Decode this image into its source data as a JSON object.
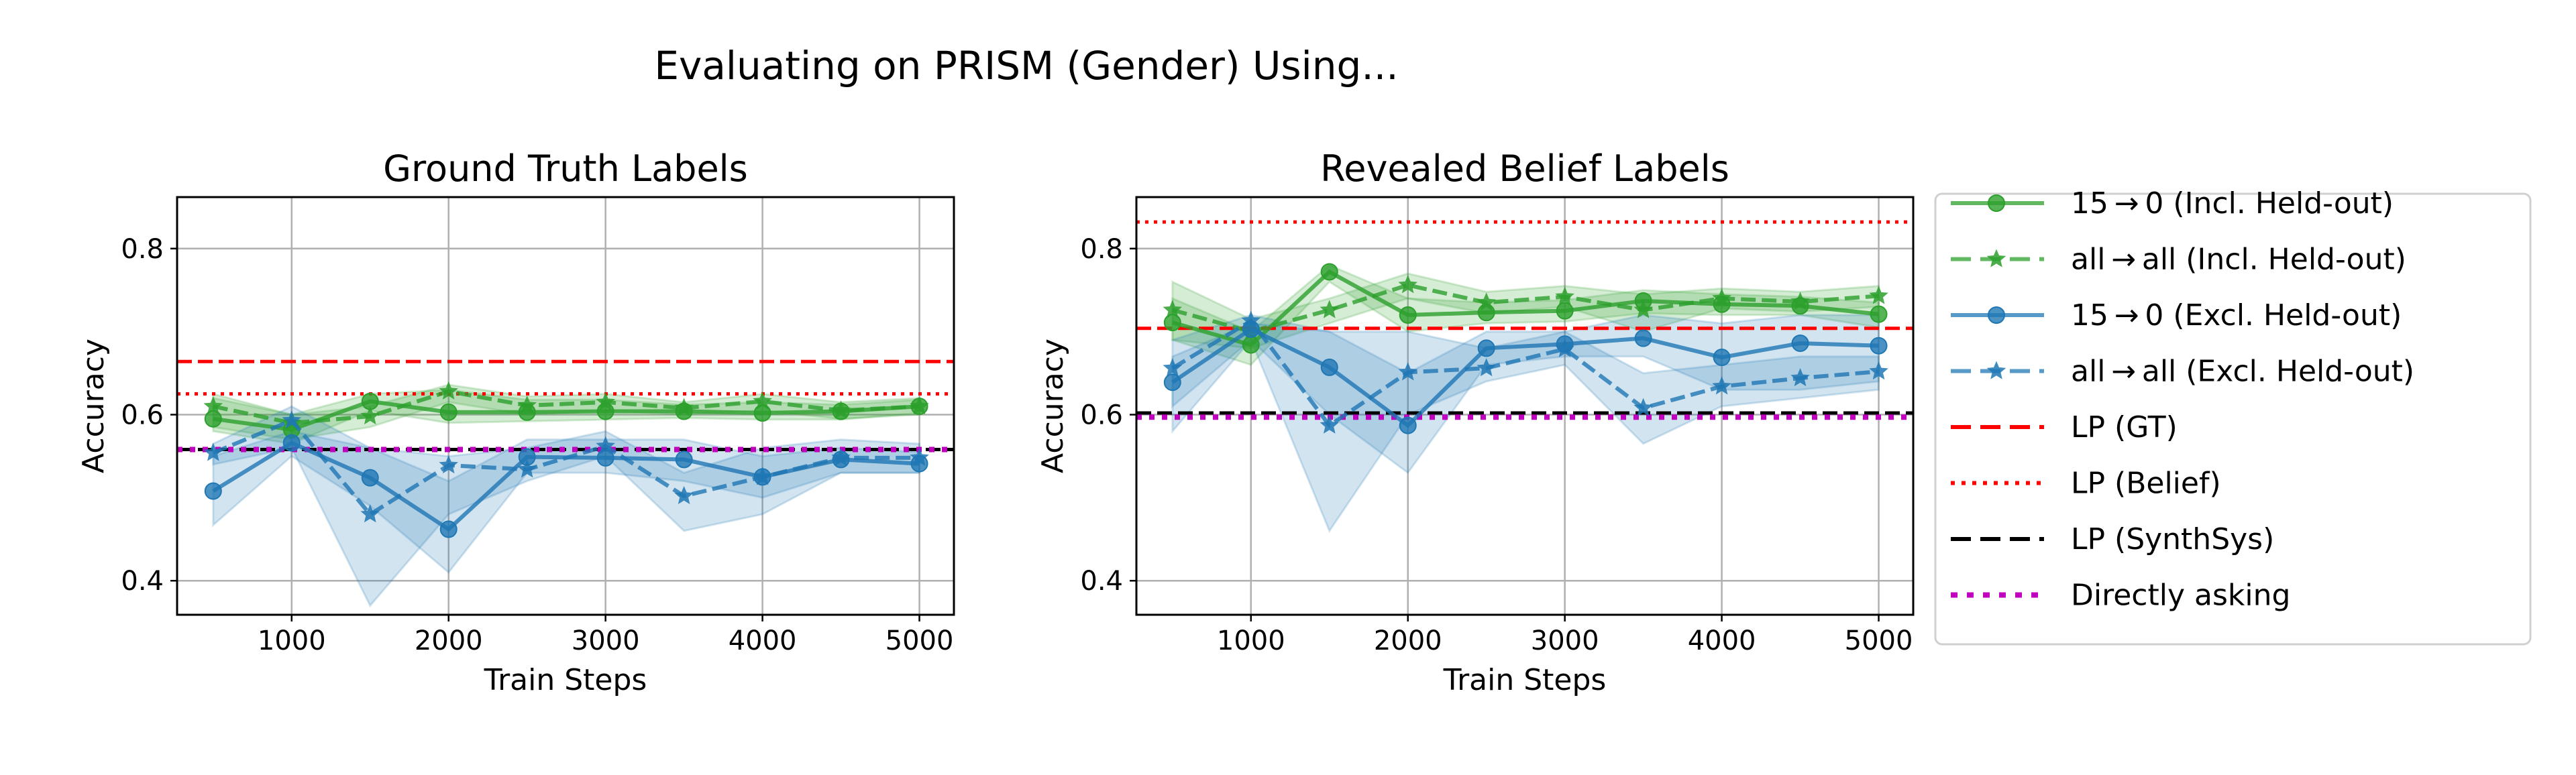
{
  "suptitle": "Evaluating on PRISM (Gender) Using...",
  "colors": {
    "green": "#2ca02c",
    "blue": "#1f77b4",
    "red": "#ff0000",
    "black": "#000000",
    "magenta": "#bf00bf"
  },
  "legend": {
    "placement": "right",
    "entries": [
      {
        "label": "15 → 0 (Incl. Held-out)",
        "color": "#2ca02c",
        "style": "solid",
        "marker": "circle"
      },
      {
        "label": "all → all (Incl. Held-out)",
        "color": "#2ca02c",
        "style": "dashed",
        "marker": "star"
      },
      {
        "label": "15 → 0 (Excl. Held-out)",
        "color": "#1f77b4",
        "style": "solid",
        "marker": "circle"
      },
      {
        "label": "all → all (Excl. Held-out)",
        "color": "#1f77b4",
        "style": "dashed",
        "marker": "star"
      },
      {
        "label": "LP (GT)",
        "color": "#ff0000",
        "style": "dashed",
        "marker": "none"
      },
      {
        "label": "LP (Belief)",
        "color": "#ff0000",
        "style": "dotted",
        "marker": "none"
      },
      {
        "label": "LP (SynthSys)",
        "color": "#000000",
        "style": "dashed",
        "marker": "none"
      },
      {
        "label": "Directly asking",
        "color": "#bf00bf",
        "style": "dotted",
        "marker": "none"
      }
    ]
  },
  "chart_data": [
    {
      "type": "line",
      "title": "Ground Truth Labels",
      "xlabel": "Train Steps",
      "ylabel": "Accuracy",
      "xlim": [
        270,
        5220
      ],
      "ylim": [
        0.359,
        0.862
      ],
      "xticks": [
        "1000",
        "2000",
        "3000",
        "4000",
        "5000"
      ],
      "yticks": [
        "0.4",
        "0.6",
        "0.8"
      ],
      "grid": true,
      "x": [
        500,
        1000,
        1500,
        2000,
        2500,
        3000,
        3500,
        4000,
        4500,
        5000
      ],
      "series": [
        {
          "name": "15 → 0 (Incl. Held-out)",
          "values": [
            0.595,
            0.582,
            0.616,
            0.603,
            0.603,
            0.604,
            0.604,
            0.602,
            0.604,
            0.61
          ],
          "lower": [
            0.58,
            0.565,
            0.605,
            0.59,
            0.592,
            0.594,
            0.596,
            0.594,
            0.594,
            0.602
          ],
          "upper": [
            0.62,
            0.6,
            0.625,
            0.63,
            0.618,
            0.618,
            0.612,
            0.615,
            0.612,
            0.618
          ]
        },
        {
          "name": "all → all (Incl. Held-out)",
          "values": [
            0.61,
            0.59,
            0.598,
            0.628,
            0.611,
            0.615,
            0.608,
            0.616,
            0.605,
            0.61
          ],
          "lower": [
            0.585,
            0.57,
            0.585,
            0.615,
            0.6,
            0.605,
            0.6,
            0.605,
            0.595,
            0.6
          ],
          "upper": [
            0.625,
            0.6,
            0.61,
            0.636,
            0.622,
            0.625,
            0.615,
            0.625,
            0.615,
            0.62
          ]
        },
        {
          "name": "15 → 0 (Excl. Held-out)",
          "values": [
            0.508,
            0.566,
            0.524,
            0.462,
            0.549,
            0.548,
            0.546,
            0.525,
            0.546,
            0.541
          ],
          "lower": [
            0.467,
            0.55,
            0.49,
            0.41,
            0.53,
            0.53,
            0.52,
            0.5,
            0.53,
            0.53
          ],
          "upper": [
            0.55,
            0.58,
            0.56,
            0.52,
            0.57,
            0.57,
            0.57,
            0.55,
            0.56,
            0.555
          ]
        },
        {
          "name": "all → all (Excl. Held-out)",
          "values": [
            0.554,
            0.593,
            0.48,
            0.539,
            0.534,
            0.562,
            0.502,
            0.525,
            0.548,
            0.548
          ],
          "lower": [
            0.54,
            0.56,
            0.37,
            0.48,
            0.52,
            0.55,
            0.46,
            0.48,
            0.53,
            0.53
          ],
          "upper": [
            0.565,
            0.61,
            0.56,
            0.55,
            0.56,
            0.58,
            0.53,
            0.56,
            0.57,
            0.565
          ]
        }
      ],
      "hlines": [
        {
          "name": "LP (GT)",
          "value": 0.664
        },
        {
          "name": "LP (Belief)",
          "value": 0.625
        },
        {
          "name": "LP (SynthSys)",
          "value": 0.558
        },
        {
          "name": "Directly asking",
          "value": 0.558
        }
      ]
    },
    {
      "type": "line",
      "title": "Revealed Belief Labels",
      "xlabel": "Train Steps",
      "ylabel": "Accuracy",
      "xlim": [
        270,
        5220
      ],
      "ylim": [
        0.359,
        0.862
      ],
      "xticks": [
        "1000",
        "2000",
        "3000",
        "4000",
        "5000"
      ],
      "yticks": [
        "0.4",
        "0.6",
        "0.8"
      ],
      "grid": true,
      "x": [
        500,
        1000,
        1500,
        2000,
        2500,
        3000,
        3500,
        4000,
        4500,
        5000
      ],
      "series": [
        {
          "name": "15 → 0 (Incl. Held-out)",
          "values": [
            0.711,
            0.684,
            0.772,
            0.72,
            0.723,
            0.725,
            0.737,
            0.733,
            0.731,
            0.721
          ],
          "lower": [
            0.69,
            0.66,
            0.76,
            0.7,
            0.71,
            0.712,
            0.722,
            0.72,
            0.72,
            0.705
          ],
          "upper": [
            0.74,
            0.7,
            0.78,
            0.74,
            0.735,
            0.738,
            0.75,
            0.745,
            0.742,
            0.735
          ]
        },
        {
          "name": "all → all (Incl. Held-out)",
          "values": [
            0.726,
            0.7,
            0.726,
            0.756,
            0.735,
            0.742,
            0.726,
            0.74,
            0.736,
            0.743
          ],
          "lower": [
            0.69,
            0.68,
            0.71,
            0.74,
            0.722,
            0.73,
            0.7,
            0.728,
            0.724,
            0.73
          ],
          "upper": [
            0.76,
            0.715,
            0.74,
            0.77,
            0.748,
            0.755,
            0.745,
            0.752,
            0.748,
            0.755
          ]
        },
        {
          "name": "15 → 0 (Excl. Held-out)",
          "values": [
            0.639,
            0.703,
            0.657,
            0.587,
            0.68,
            0.685,
            0.692,
            0.669,
            0.686,
            0.683
          ],
          "lower": [
            0.61,
            0.69,
            0.6,
            0.53,
            0.66,
            0.67,
            0.67,
            0.63,
            0.63,
            0.64
          ],
          "upper": [
            0.67,
            0.71,
            0.7,
            0.65,
            0.7,
            0.7,
            0.72,
            0.71,
            0.72,
            0.72
          ]
        },
        {
          "name": "all → all (Excl. Held-out)",
          "values": [
            0.656,
            0.713,
            0.587,
            0.651,
            0.656,
            0.679,
            0.608,
            0.634,
            0.644,
            0.652
          ],
          "lower": [
            0.58,
            0.69,
            0.46,
            0.6,
            0.64,
            0.66,
            0.565,
            0.61,
            0.62,
            0.63
          ],
          "upper": [
            0.69,
            0.72,
            0.7,
            0.7,
            0.68,
            0.7,
            0.65,
            0.66,
            0.67,
            0.67
          ]
        }
      ],
      "hlines": [
        {
          "name": "LP (GT)",
          "value": 0.704
        },
        {
          "name": "LP (Belief)",
          "value": 0.832
        },
        {
          "name": "LP (SynthSys)",
          "value": 0.602
        },
        {
          "name": "Directly asking",
          "value": 0.597
        }
      ]
    }
  ]
}
